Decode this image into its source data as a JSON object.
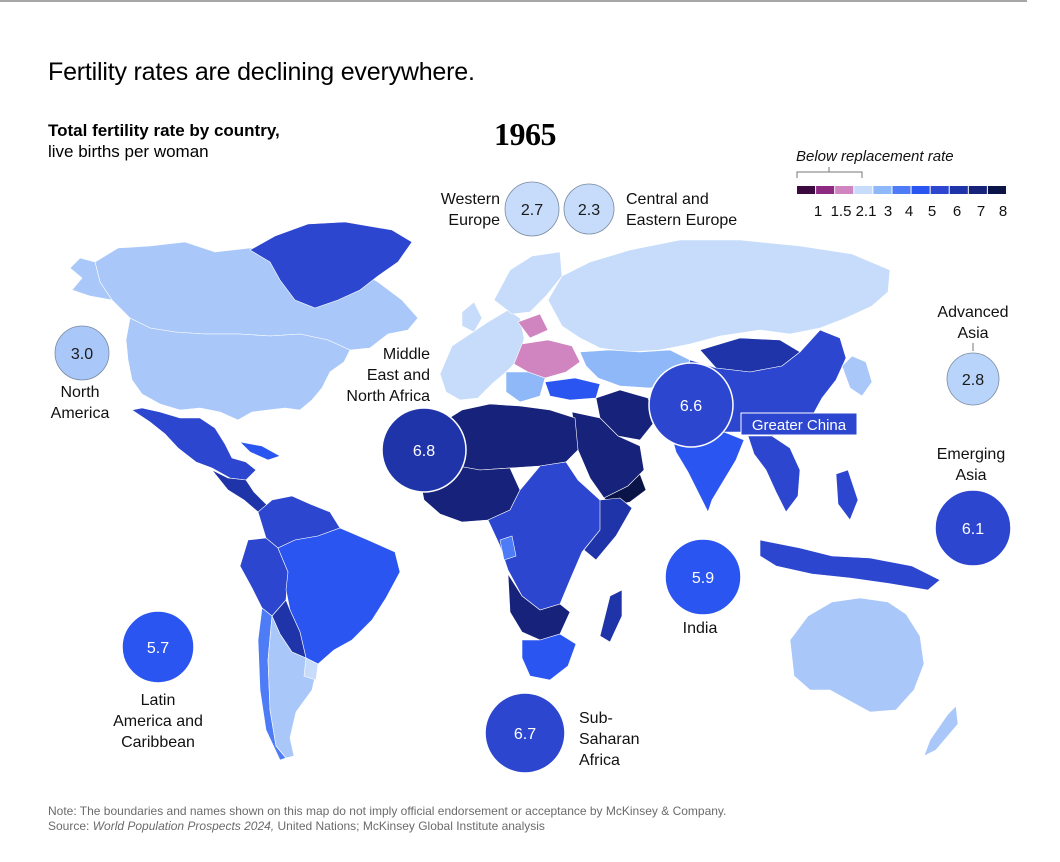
{
  "headline": "Fertility rates are declining everywhere.",
  "subtitle": {
    "bold": "Total fertility rate by country,",
    "normal": "live births per woman"
  },
  "year": "1965",
  "legend": {
    "title": "Below replacement rate",
    "swatches": [
      "#3c0a3e",
      "#8e2a82",
      "#d084c0",
      "#c6dcfa",
      "#8fb8f8",
      "#4d7cf6",
      "#2a55f0",
      "#2c46cf",
      "#1f34a8",
      "#17227a",
      "#0b1447"
    ],
    "ticks": [
      "1",
      "1.5",
      "2.1",
      "3",
      "4",
      "5",
      "6",
      "7",
      "8"
    ]
  },
  "regions": [
    {
      "id": "western-europe",
      "name_lines": [
        "Western",
        "Europe"
      ],
      "value": "2.7",
      "color": "#c6dcfa"
    },
    {
      "id": "central-eastern-europe",
      "name_lines": [
        "Central and",
        "Eastern Europe"
      ],
      "value": "2.3",
      "color": "#c6dcfa"
    },
    {
      "id": "north-america",
      "name_lines": [
        "North",
        "America"
      ],
      "value": "3.0",
      "color": "#a9c8f9"
    },
    {
      "id": "middle-east-north-africa",
      "name_lines": [
        "Middle",
        "East and",
        "North Africa"
      ],
      "value": "6.8",
      "color": "#1f34a8"
    },
    {
      "id": "greater-china",
      "name_lines": [
        "Greater China"
      ],
      "value": "6.6",
      "color": "#2c46cf"
    },
    {
      "id": "advanced-asia",
      "name_lines": [
        "Advanced",
        "Asia"
      ],
      "value": "2.8",
      "color": "#b9d4fa"
    },
    {
      "id": "emerging-asia",
      "name_lines": [
        "Emerging",
        "Asia"
      ],
      "value": "6.1",
      "color": "#2c46cf"
    },
    {
      "id": "india",
      "name_lines": [
        "India"
      ],
      "value": "5.9",
      "color": "#2a55f0"
    },
    {
      "id": "latin-america-caribbean",
      "name_lines": [
        "Latin",
        "America and",
        "Caribbean"
      ],
      "value": "5.7",
      "color": "#2a55f0"
    },
    {
      "id": "sub-saharan-africa",
      "name_lines": [
        "Sub-",
        "Saharan",
        "Africa"
      ],
      "value": "6.7",
      "color": "#2c46cf"
    }
  ],
  "note": {
    "line1": "Note: The boundaries and names shown on this map do not imply official endorsement or acceptance by McKinsey & Company.",
    "source_prefix": "Source: ",
    "source_italic": "World Population Prospects 2024,",
    "source_rest": " United Nations; McKinsey Global Institute analysis"
  }
}
